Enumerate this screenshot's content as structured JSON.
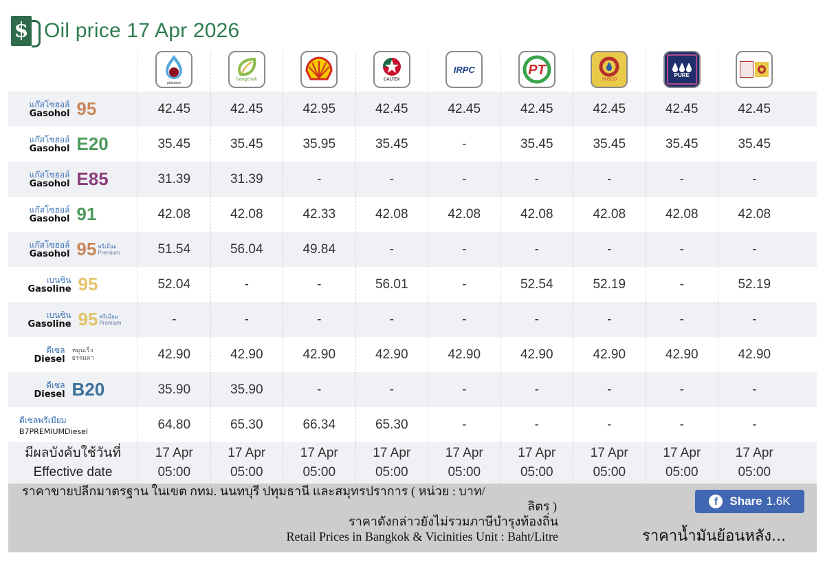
{
  "header": {
    "title": "Oil price 17 Apr 2026",
    "icon": "fuel-pump-dollar-icon",
    "icon_glyph": "$"
  },
  "brands": [
    {
      "name": "PTT Station",
      "logo_text": "pttstation",
      "color": "#b3122a"
    },
    {
      "name": "Bangchak",
      "logo_text": "bangchak",
      "color": "#7fb24a"
    },
    {
      "name": "Shell",
      "logo_text": "",
      "color": "#e7b800"
    },
    {
      "name": "Caltex",
      "logo_text": "CALTEX",
      "color": "#c8102e"
    },
    {
      "name": "IRPC",
      "logo_text": "IRPC",
      "color": "#1d3f8f"
    },
    {
      "name": "PT",
      "logo_text": "PT",
      "color": "#d12a2a"
    },
    {
      "name": "Susco",
      "logo_text": "SUSCO",
      "color": "#e9c94a"
    },
    {
      "name": "Pure",
      "logo_text": "PURE",
      "color": "#1f2f6b"
    },
    {
      "name": "Susco Dealers",
      "logo_text": "SUSCO",
      "color": "#e9c94a"
    }
  ],
  "fuels": [
    {
      "th": "แก๊สโซฮอล์",
      "en": "Gasohol",
      "grade": "95",
      "grade_color": "#c8865a",
      "sub_th": "",
      "sub_en": "",
      "prices": [
        "42.45",
        "42.45",
        "42.95",
        "42.45",
        "42.45",
        "42.45",
        "42.45",
        "42.45",
        "42.45"
      ]
    },
    {
      "th": "แก๊สโซฮอล์",
      "en": "Gasohol",
      "grade": "E20",
      "grade_color": "#4e9a5e",
      "sub_th": "",
      "sub_en": "",
      "prices": [
        "35.45",
        "35.45",
        "35.95",
        "35.45",
        "-",
        "35.45",
        "35.45",
        "35.45",
        "35.45"
      ]
    },
    {
      "th": "แก๊สโซฮอล์",
      "en": "Gasohol",
      "grade": "E85",
      "grade_color": "#8a3d7a",
      "sub_th": "",
      "sub_en": "",
      "prices": [
        "31.39",
        "31.39",
        "-",
        "-",
        "-",
        "-",
        "-",
        "-",
        "-"
      ]
    },
    {
      "th": "แก๊สโซฮอล์",
      "en": "Gasohol",
      "grade": "91",
      "grade_color": "#4e9a5e",
      "sub_th": "",
      "sub_en": "",
      "prices": [
        "42.08",
        "42.08",
        "42.33",
        "42.08",
        "42.08",
        "42.08",
        "42.08",
        "42.08",
        "42.08"
      ]
    },
    {
      "th": "แก๊สโซฮอล์",
      "en": "Gasohol",
      "grade": "95",
      "grade_color": "#c8865a",
      "sub_th": "พรีเมี่ยม",
      "sub_en": "Premium",
      "prices": [
        "51.54",
        "56.04",
        "49.84",
        "-",
        "-",
        "-",
        "-",
        "-",
        "-"
      ]
    },
    {
      "th": "เบนซิน",
      "en": "Gasoline",
      "grade": "95",
      "grade_color": "#e3c46a",
      "sub_th": "",
      "sub_en": "",
      "prices": [
        "52.04",
        "-",
        "-",
        "56.01",
        "-",
        "52.54",
        "52.19",
        "-",
        "52.19"
      ]
    },
    {
      "th": "เบนซิน",
      "en": "Gasoline",
      "grade": "95",
      "grade_color": "#e3c46a",
      "sub_th": "พรีเมี่ยม",
      "sub_en": "Premium",
      "prices": [
        "-",
        "-",
        "-",
        "-",
        "-",
        "-",
        "-",
        "-",
        "-"
      ]
    },
    {
      "th": "ดีเซล",
      "en": "Diesel",
      "grade": "",
      "grade_color": "#555555",
      "sub_th": "หมุนเร็ว",
      "sub_en": "ธรรมดา",
      "prices": [
        "42.90",
        "42.90",
        "42.90",
        "42.90",
        "42.90",
        "42.90",
        "42.90",
        "42.90",
        "42.90"
      ]
    },
    {
      "th": "ดีเซล",
      "en": "Diesel",
      "grade": "B20",
      "grade_color": "#3a6f9a",
      "sub_th": "",
      "sub_en": "",
      "prices": [
        "35.90",
        "35.90",
        "-",
        "-",
        "-",
        "-",
        "-",
        "-",
        "-"
      ]
    },
    {
      "th": "ดีเซลพรีเมียม",
      "en": "B7PREMIUMDiesel",
      "grade": "",
      "grade_color": "#555555",
      "sub_th": "",
      "sub_en": "",
      "prices": [
        "64.80",
        "65.30",
        "66.34",
        "65.30",
        "-",
        "-",
        "-",
        "-",
        "-"
      ]
    }
  ],
  "effective": {
    "label_th": "มีผลบังคับใช้วันที่",
    "label_en": "Effective date",
    "dates": [
      "17 Apr",
      "17 Apr",
      "17 Apr",
      "17 Apr",
      "17 Apr",
      "17 Apr",
      "17 Apr",
      "17 Apr",
      "17 Apr"
    ],
    "times": [
      "05:00",
      "05:00",
      "05:00",
      "05:00",
      "05:00",
      "05:00",
      "05:00",
      "05:00",
      "05:00"
    ]
  },
  "footer": {
    "note_line1": "ราคาขายปลีกมาตรฐาน ในเขต กทม. นนทบุรี ปทุมธานี และสมุทรปราการ ( หน่วย : บาท/",
    "note_line1b": "ลิตร )",
    "note_line2": "ราคาดังกล่าวยังไม่รวมภาษีบำรุงท้องถิ่น",
    "note_line3": "Retail Prices in Bangkok & Vicinities Unit : Baht/Litre",
    "share_label": "Share",
    "share_count": "1.6K",
    "share_color": "#4267b2",
    "history_link": "ราคาน้ำมันย้อนหลัง..."
  }
}
